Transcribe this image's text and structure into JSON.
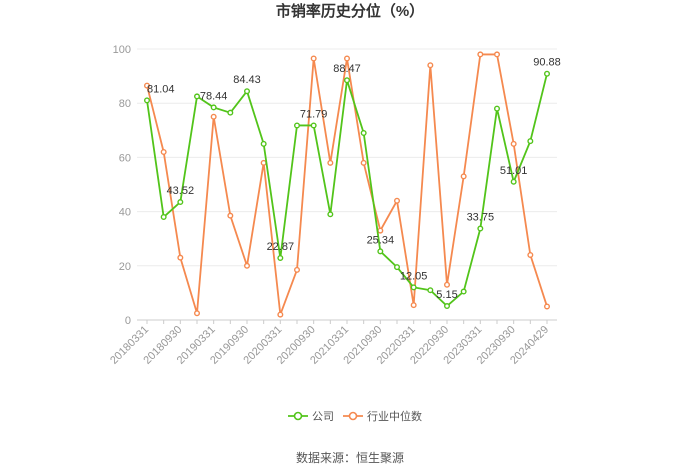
{
  "chart_data": {
    "type": "line",
    "title": "市销率历史分位（%）",
    "ylim": [
      0,
      100
    ],
    "yticks": [
      0,
      20,
      40,
      60,
      80,
      100
    ],
    "grid": true,
    "legend_position": "bottom",
    "x": [
      "20180331",
      "20180630",
      "20180930",
      "20181231",
      "20190331",
      "20190630",
      "20190930",
      "20191231",
      "20200331",
      "20200630",
      "20200930",
      "20201231",
      "20210331",
      "20210630",
      "20210930",
      "20211231",
      "20220331",
      "20220630",
      "20220930",
      "20221231",
      "20230331",
      "20230630",
      "20230930",
      "20231231",
      "20240429"
    ],
    "xticks": [
      "20180331",
      "20180930",
      "20190331",
      "20190930",
      "20200331",
      "20200930",
      "20210331",
      "20210930",
      "20220331",
      "20220930",
      "20230331",
      "20230930",
      "20240429"
    ],
    "series": [
      {
        "name": "公司",
        "color": "#52c41a",
        "values": [
          81.04,
          38,
          43.52,
          82.5,
          78.44,
          76.5,
          84.43,
          65,
          22.87,
          71.79,
          71.79,
          39,
          88.47,
          69,
          25.34,
          19.5,
          12.05,
          11,
          5.15,
          10.5,
          33.75,
          78,
          51.01,
          66,
          90.88
        ]
      },
      {
        "name": "行业中位数",
        "color": "#f5894f",
        "values": [
          86.5,
          62,
          23,
          2.5,
          75,
          38.5,
          20,
          58,
          2,
          18.5,
          96.5,
          58,
          96.5,
          58,
          33,
          44,
          5.5,
          94,
          13,
          53,
          98,
          98,
          65,
          24,
          5
        ]
      }
    ],
    "data_labels": [
      {
        "series": 0,
        "index": 0,
        "text": "81.04"
      },
      {
        "series": 0,
        "index": 2,
        "text": "43.52"
      },
      {
        "series": 0,
        "index": 4,
        "text": "78.44"
      },
      {
        "series": 0,
        "index": 6,
        "text": "84.43"
      },
      {
        "series": 0,
        "index": 8,
        "text": "22.87"
      },
      {
        "series": 0,
        "index": 10,
        "text": "71.79"
      },
      {
        "series": 0,
        "index": 12,
        "text": "88.47"
      },
      {
        "series": 0,
        "index": 14,
        "text": "25.34"
      },
      {
        "series": 0,
        "index": 16,
        "text": "12.05"
      },
      {
        "series": 0,
        "index": 18,
        "text": "5.15"
      },
      {
        "series": 0,
        "index": 20,
        "text": "33.75"
      },
      {
        "series": 0,
        "index": 22,
        "text": "51.01"
      },
      {
        "series": 0,
        "index": 24,
        "text": "90.88"
      }
    ]
  },
  "footer": {
    "source": "数据来源：恒生聚源"
  }
}
